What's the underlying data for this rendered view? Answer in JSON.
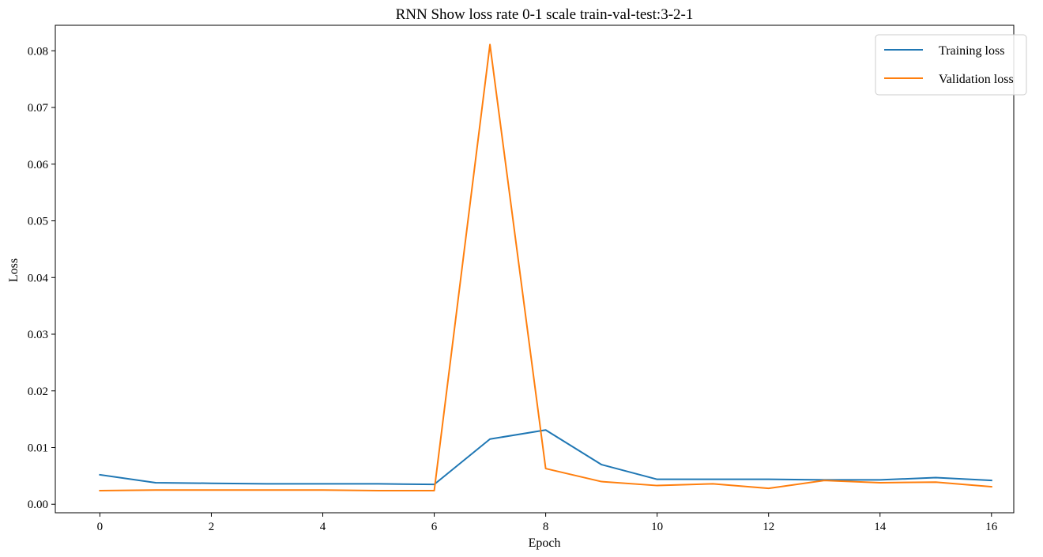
{
  "chart_data": {
    "type": "line",
    "title": "RNN Show loss rate 0-1 scale train-val-test:3-2-1",
    "xlabel": "Epoch",
    "ylabel": "Loss",
    "xlim": [
      -0.8,
      16.4
    ],
    "ylim": [
      -0.0015,
      0.0845
    ],
    "xticks": [
      0,
      2,
      4,
      6,
      8,
      10,
      12,
      14,
      16
    ],
    "xtick_labels": [
      "0",
      "2",
      "4",
      "6",
      "8",
      "10",
      "12",
      "14",
      "16"
    ],
    "yticks": [
      0.0,
      0.01,
      0.02,
      0.03,
      0.04,
      0.05,
      0.06,
      0.07,
      0.08
    ],
    "ytick_labels": [
      "0.00",
      "0.01",
      "0.02",
      "0.03",
      "0.04",
      "0.05",
      "0.06",
      "0.07",
      "0.08"
    ],
    "grid": false,
    "legend_position": "top-right",
    "x": [
      0,
      1,
      2,
      3,
      4,
      5,
      6,
      7,
      8,
      9,
      10,
      11,
      12,
      13,
      14,
      15,
      16
    ],
    "series": [
      {
        "name": "Training loss",
        "color": "#1f77b4",
        "values": [
          0.0052,
          0.0038,
          0.0037,
          0.0036,
          0.0036,
          0.0036,
          0.0035,
          0.0115,
          0.0131,
          0.007,
          0.0044,
          0.0044,
          0.0044,
          0.0043,
          0.0043,
          0.0047,
          0.0042
        ]
      },
      {
        "name": "Validation loss",
        "color": "#ff7f0e",
        "values": [
          0.0024,
          0.0025,
          0.0025,
          0.0025,
          0.0025,
          0.0024,
          0.0024,
          0.0811,
          0.0063,
          0.004,
          0.0033,
          0.0036,
          0.0028,
          0.0042,
          0.0038,
          0.0039,
          0.0031
        ]
      }
    ]
  }
}
